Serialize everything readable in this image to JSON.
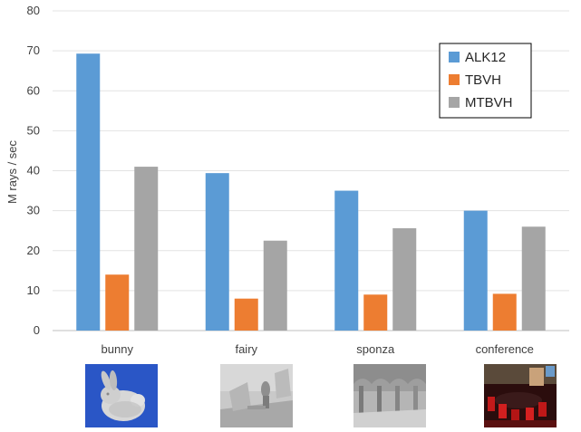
{
  "chart_data": {
    "type": "bar",
    "title": "",
    "xlabel": "",
    "ylabel": "M rays / sec",
    "ylim": [
      0,
      80
    ],
    "yticks": [
      0,
      10,
      20,
      30,
      40,
      50,
      60,
      70,
      80
    ],
    "grid": true,
    "legend_position": "top-right",
    "categories": [
      "bunny",
      "fairy",
      "sponza",
      "conference"
    ],
    "series": [
      {
        "name": "ALK12",
        "color": "#5b9bd5",
        "values": [
          69.3,
          39.4,
          35.0,
          30.0
        ]
      },
      {
        "name": "TBVH",
        "color": "#ed7d31",
        "values": [
          14.0,
          8.0,
          9.0,
          9.2
        ]
      },
      {
        "name": "MTBVH",
        "color": "#a5a5a5",
        "values": [
          41.0,
          22.5,
          25.6,
          26.0
        ]
      }
    ]
  },
  "thumbnails": [
    {
      "scene": "bunny",
      "icon": "bunny-render-icon"
    },
    {
      "scene": "fairy",
      "icon": "fairy-render-icon"
    },
    {
      "scene": "sponza",
      "icon": "sponza-render-icon"
    },
    {
      "scene": "conference",
      "icon": "conference-render-icon"
    }
  ]
}
